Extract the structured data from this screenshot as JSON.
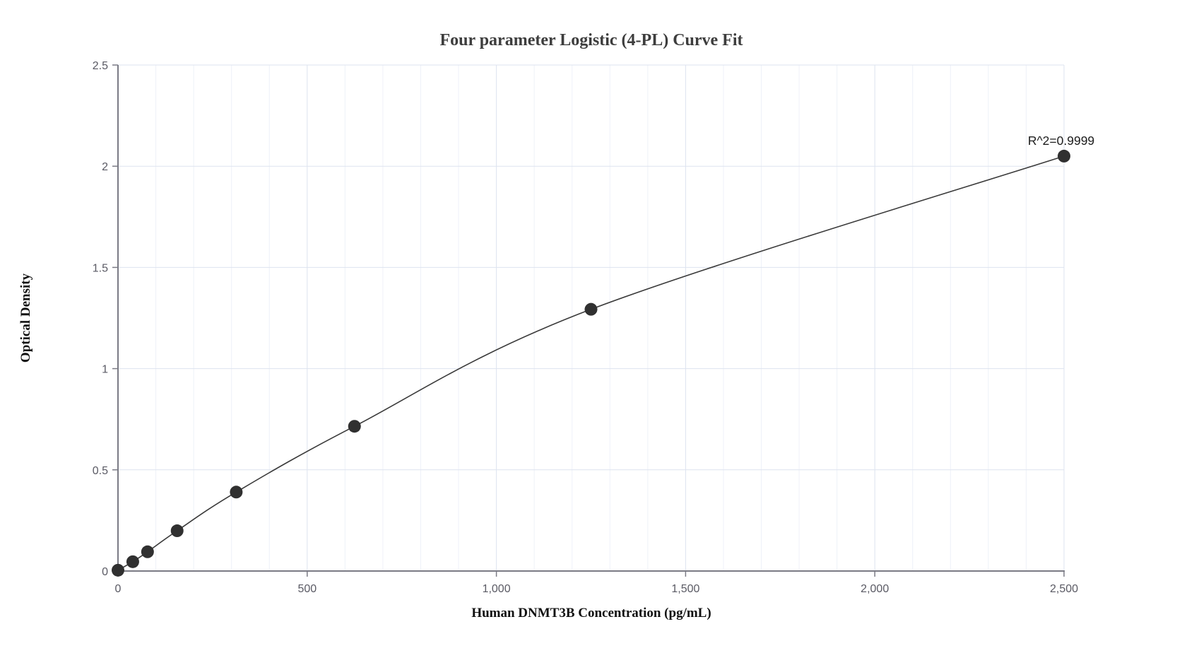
{
  "chart_data": {
    "type": "scatter",
    "title": "Four parameter Logistic (4-PL) Curve Fit",
    "xlabel": "Human DNMT3B Concentration (pg/mL)",
    "ylabel": "Optical Density",
    "annotation": "R^2=0.9999",
    "xlim": [
      0,
      2500
    ],
    "ylim": [
      0,
      2.5
    ],
    "x_ticks": [
      0,
      500,
      1000,
      1500,
      2000,
      2500
    ],
    "x_tick_labels": [
      "0",
      "500",
      "1,000",
      "1,500",
      "2,000",
      "2,500"
    ],
    "y_ticks": [
      0,
      0.5,
      1,
      1.5,
      2,
      2.5
    ],
    "y_tick_labels": [
      "0",
      "0.5",
      "1",
      "1.5",
      "2",
      "2.5"
    ],
    "x_minor_grid_step": 100,
    "grid": true,
    "legend_position": "none",
    "series": [
      {
        "name": "Standard curve (4-PL fit)",
        "marker": "circle",
        "points": [
          [
            0,
            0.004
          ],
          [
            39.1,
            0.046
          ],
          [
            78.1,
            0.095
          ],
          [
            156.3,
            0.199
          ],
          [
            312.5,
            0.39
          ],
          [
            625,
            0.715
          ],
          [
            1250,
            1.293
          ],
          [
            2500,
            2.05
          ]
        ]
      }
    ],
    "colors": {
      "point": "#303030",
      "line": "#3a3a3a",
      "grid_minor": "#eef1f8",
      "grid_major": "#dde3ef",
      "axis": "#7b7b85",
      "tick_label": "#5a5a64",
      "title": "#3d3d3d",
      "axis_label": "#111111",
      "annotation": "#1c1c1c",
      "background": "#ffffff"
    }
  }
}
